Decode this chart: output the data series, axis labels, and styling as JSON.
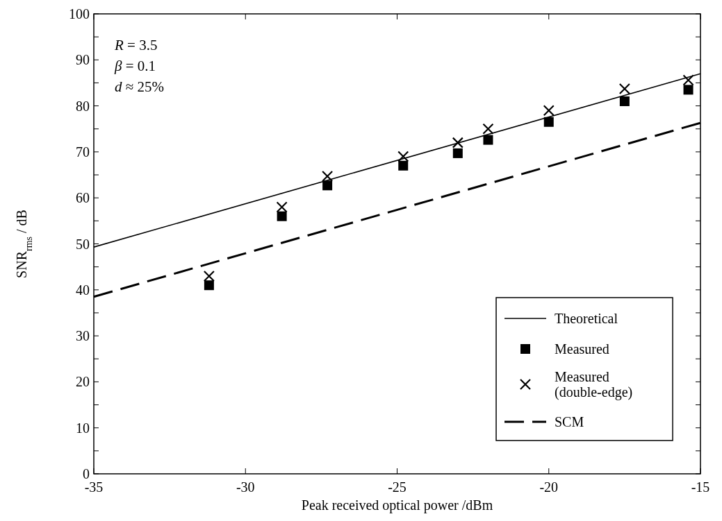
{
  "chart_data": {
    "type": "line",
    "xlabel": "Peak received optical power /dBm",
    "ylabel": "SNR$_{rms}$ / dB",
    "xlim": [
      -35,
      -15
    ],
    "xticks": [
      -35,
      -30,
      -25,
      -20,
      -15
    ],
    "ylim": [
      0,
      100
    ],
    "yticks": [
      0,
      {
        "value": 5,
        "label": null
      },
      10,
      {
        "value": 15,
        "label": null
      },
      20,
      {
        "value": 25,
        "label": null
      },
      30,
      {
        "value": 35,
        "label": null
      },
      40,
      {
        "value": 45,
        "label": null
      },
      50,
      {
        "value": 55,
        "label": null
      },
      60,
      {
        "value": 65,
        "label": null
      },
      70,
      {
        "value": 75,
        "label": null
      },
      80,
      {
        "value": 85,
        "label": null
      },
      90,
      {
        "value": 95,
        "label": null
      },
      100
    ],
    "grid": false,
    "legend": "bottom right",
    "annotations": [
      "R = 3.5",
      "β = 0.1",
      "d ≈ 25%"
    ],
    "series": [
      {
        "name": "Theoretical",
        "color": "#000000",
        "x": [
          -35,
          -15
        ],
        "values": [
          49.3,
          87
        ],
        "marker": "none",
        "line_style": "solid"
      },
      {
        "name": "Measured",
        "type": "scatter",
        "color": "#000000",
        "x": [
          -31.2,
          -28.8,
          -27.3,
          -24.8,
          -23,
          -22,
          -20,
          -17.5,
          -15.4
        ],
        "values": [
          41,
          56,
          62.7,
          67,
          69.7,
          72.6,
          76.5,
          81,
          83.5
        ],
        "marker": "square"
      },
      {
        "name": "Measured (double-edge)",
        "type": "scatter",
        "color": "#000000",
        "x": [
          -31.2,
          -28.8,
          -27.3,
          -24.8,
          -23,
          -22,
          -20,
          -17.5,
          -15.4
        ],
        "values": [
          43,
          58,
          64.7,
          69,
          72,
          75,
          79,
          83.7,
          85.6
        ],
        "marker": "cross"
      },
      {
        "name": "SCM",
        "color": "#000000",
        "x": [
          -35,
          -15
        ],
        "values": [
          38.5,
          76.3
        ],
        "marker": "none",
        "line_style": "dashed"
      }
    ]
  }
}
